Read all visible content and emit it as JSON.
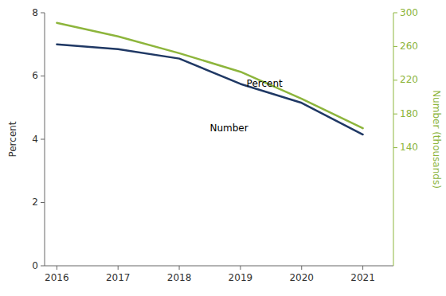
{
  "chart_data": {
    "type": "line",
    "x": [
      2016,
      2017,
      2018,
      2019,
      2020,
      2021
    ],
    "xlim": [
      2015.8,
      2021.5
    ],
    "xticks": [
      2016,
      2017,
      2018,
      2019,
      2020,
      2021
    ],
    "ylabel": "Percent",
    "ylim": [
      0,
      8
    ],
    "yticks": [
      0,
      2,
      4,
      6,
      8
    ],
    "y2label": "Number (thousands)",
    "y2lim": [
      0,
      300
    ],
    "y2ticks": [
      140,
      180,
      220,
      260,
      300
    ],
    "grid": false,
    "series": [
      {
        "color": "#1f3864",
        "values": [
          7.0,
          6.85,
          6.55,
          5.75,
          5.15,
          4.15
        ]
      },
      {
        "color": "#8db53c",
        "axis": "y2",
        "values": [
          288,
          272,
          252,
          230,
          198,
          163
        ]
      }
    ],
    "annotations": [
      {
        "text": "Percent",
        "x": 2019.1,
        "y": 5.75
      },
      {
        "text": "Number",
        "x": 2018.5,
        "y": 4.35
      }
    ]
  }
}
